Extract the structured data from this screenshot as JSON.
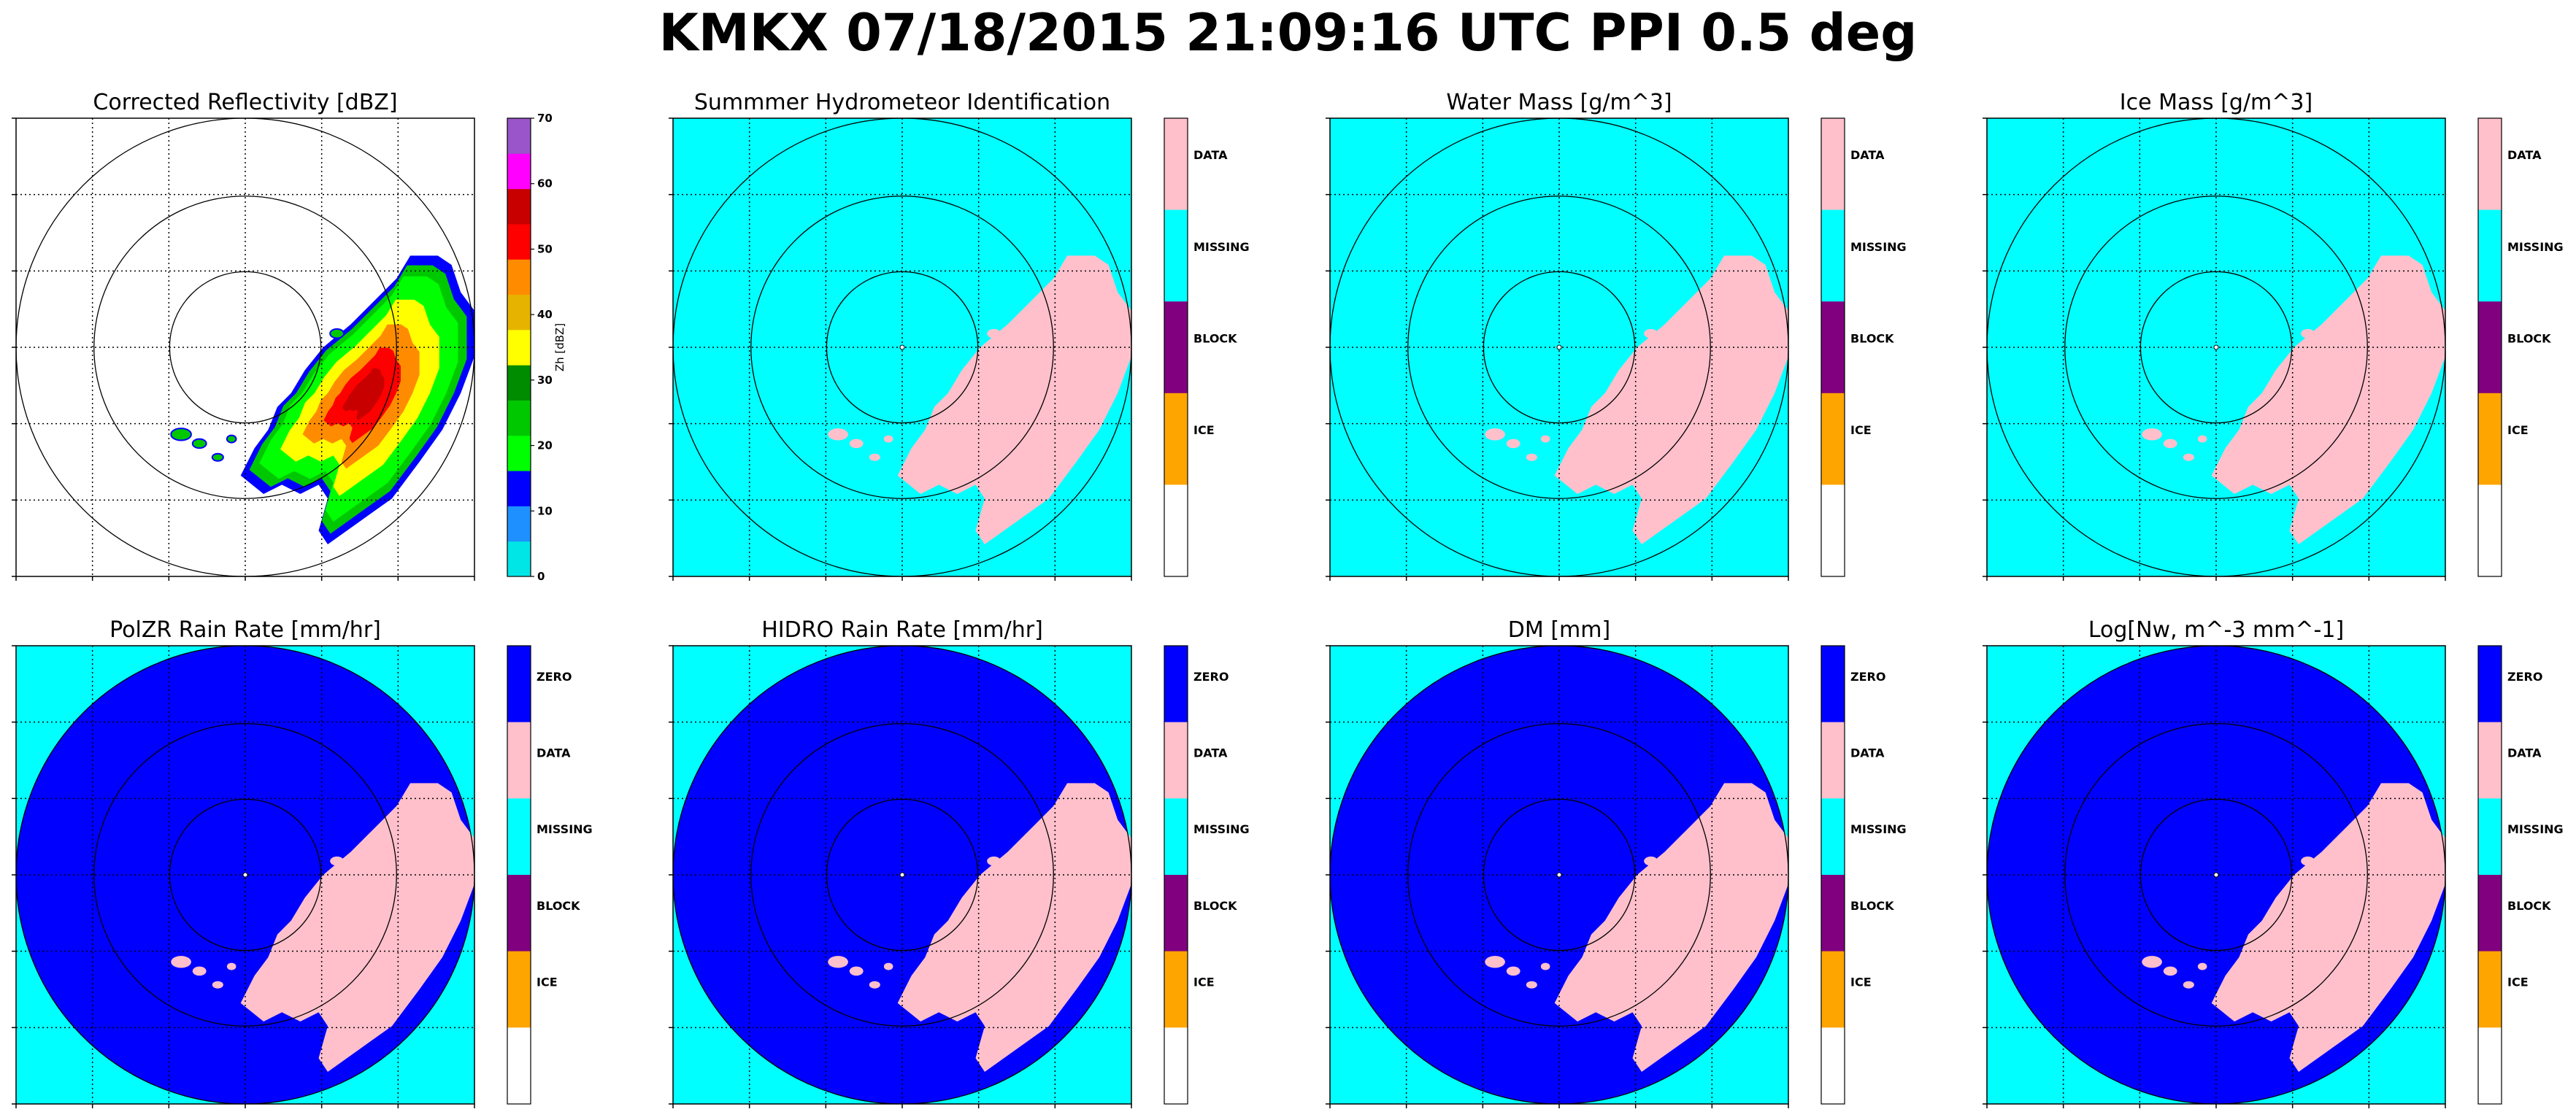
{
  "title": "KMKX 07/18/2015 21:09:16 UTC PPI 0.5 deg",
  "colors": {
    "cyan": "#00ffff",
    "blue": "#0000ff",
    "pink": "#ffc0cb",
    "purple": "#800080",
    "orange": "#ffa500",
    "white": "#ffffff"
  },
  "chart_data": [
    {
      "type": "heatmap",
      "title": "Corrected Reflectivity [dBZ]",
      "background": "#ffffff",
      "colorbar": {
        "kind": "continuous",
        "label": "Zh [dBZ]",
        "ticks": [
          "0",
          "10",
          "20",
          "30",
          "40",
          "50",
          "60",
          "70"
        ],
        "range": [
          0,
          70
        ],
        "colors": [
          "#00e5e5",
          "#1e90ff",
          "#0000ff",
          "#00ff00",
          "#00c800",
          "#008c00",
          "#ffff00",
          "#e6b400",
          "#ff8c00",
          "#ff0000",
          "#c80000",
          "#ff00ff",
          "#9955c9"
        ]
      }
    },
    {
      "type": "heatmap",
      "title": "Summmer Hydrometeor Identification",
      "background": "#00ffff",
      "colorbar": {
        "kind": "categorical",
        "categories": [
          "DATA",
          "MISSING",
          "BLOCK",
          "ICE",
          ""
        ],
        "colors": [
          "#ffc0cb",
          "#00ffff",
          "#800080",
          "#ffa500",
          "#ffffff"
        ]
      }
    },
    {
      "type": "heatmap",
      "title": "Water Mass [g/m^3]",
      "background": "#00ffff",
      "colorbar": {
        "kind": "categorical",
        "categories": [
          "DATA",
          "MISSING",
          "BLOCK",
          "ICE",
          ""
        ],
        "colors": [
          "#ffc0cb",
          "#00ffff",
          "#800080",
          "#ffa500",
          "#ffffff"
        ]
      }
    },
    {
      "type": "heatmap",
      "title": "Ice Mass [g/m^3]",
      "background": "#00ffff",
      "colorbar": {
        "kind": "categorical",
        "categories": [
          "DATA",
          "MISSING",
          "BLOCK",
          "ICE",
          ""
        ],
        "colors": [
          "#ffc0cb",
          "#00ffff",
          "#800080",
          "#ffa500",
          "#ffffff"
        ]
      }
    },
    {
      "type": "heatmap",
      "title": "PolZR Rain Rate [mm/hr]",
      "background": "#00ffff",
      "disk": "#0000ff",
      "colorbar": {
        "kind": "categorical",
        "categories": [
          "ZERO",
          "DATA",
          "MISSING",
          "BLOCK",
          "ICE",
          ""
        ],
        "colors": [
          "#0000ff",
          "#ffc0cb",
          "#00ffff",
          "#800080",
          "#ffa500",
          "#ffffff"
        ]
      }
    },
    {
      "type": "heatmap",
      "title": "HIDRO Rain Rate [mm/hr]",
      "background": "#00ffff",
      "disk": "#0000ff",
      "colorbar": {
        "kind": "categorical",
        "categories": [
          "ZERO",
          "DATA",
          "MISSING",
          "BLOCK",
          "ICE",
          ""
        ],
        "colors": [
          "#0000ff",
          "#ffc0cb",
          "#00ffff",
          "#800080",
          "#ffa500",
          "#ffffff"
        ]
      }
    },
    {
      "type": "heatmap",
      "title": "DM [mm]",
      "background": "#00ffff",
      "disk": "#0000ff",
      "colorbar": {
        "kind": "categorical",
        "categories": [
          "ZERO",
          "DATA",
          "MISSING",
          "BLOCK",
          "ICE",
          ""
        ],
        "colors": [
          "#0000ff",
          "#ffc0cb",
          "#00ffff",
          "#800080",
          "#ffa500",
          "#ffffff"
        ]
      }
    },
    {
      "type": "heatmap",
      "title": "Log[Nw, m^-3 mm^-1]",
      "background": "#00ffff",
      "disk": "#0000ff",
      "colorbar": {
        "kind": "categorical",
        "categories": [
          "ZERO",
          "DATA",
          "MISSING",
          "BLOCK",
          "ICE",
          ""
        ],
        "colors": [
          "#0000ff",
          "#ffc0cb",
          "#00ffff",
          "#800080",
          "#ffa500",
          "#ffffff"
        ]
      }
    }
  ]
}
